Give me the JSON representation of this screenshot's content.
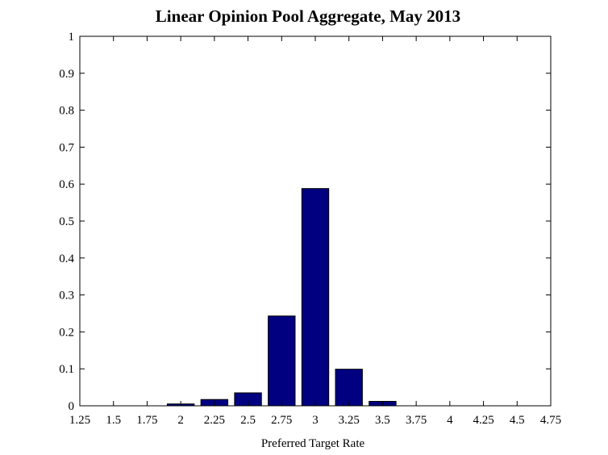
{
  "chart_data": {
    "type": "bar",
    "title": "Linear Opinion Pool Aggregate, May 2013",
    "xlabel": "Preferred Target Rate",
    "ylabel": "",
    "x": [
      2,
      2.25,
      2.5,
      2.75,
      3,
      3.25,
      3.5
    ],
    "values": [
      0.005,
      0.017,
      0.035,
      0.243,
      0.588,
      0.099,
      0.012
    ],
    "bar_width": 0.2,
    "xlim": [
      1.25,
      4.75
    ],
    "ylim": [
      0,
      1
    ],
    "xticks": [
      1.25,
      1.5,
      1.75,
      2,
      2.25,
      2.5,
      2.75,
      3,
      3.25,
      3.5,
      3.75,
      4,
      4.25,
      4.5,
      4.75
    ],
    "xtick_labels": [
      "1.25",
      "1.5",
      "1.75",
      "2",
      "2.25",
      "2.5",
      "2.75",
      "3",
      "3.25",
      "3.5",
      "3.75",
      "4",
      "4.25",
      "4.5",
      "4.75"
    ],
    "yticks": [
      0,
      0.1,
      0.2,
      0.3,
      0.4,
      0.5,
      0.6,
      0.7,
      0.8,
      0.9,
      1
    ],
    "ytick_labels": [
      "0",
      "0.1",
      "0.2",
      "0.3",
      "0.4",
      "0.5",
      "0.6",
      "0.7",
      "0.8",
      "0.9",
      "1"
    ],
    "grid": false,
    "bar_color": "#000080"
  }
}
